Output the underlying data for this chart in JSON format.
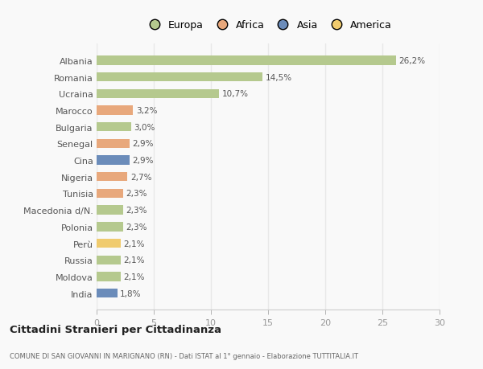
{
  "categories": [
    "Albania",
    "Romania",
    "Ucraina",
    "Marocco",
    "Bulgaria",
    "Senegal",
    "Cina",
    "Nigeria",
    "Tunisia",
    "Macedonia d/N.",
    "Polonia",
    "Perù",
    "Russia",
    "Moldova",
    "India"
  ],
  "values": [
    26.2,
    14.5,
    10.7,
    3.2,
    3.0,
    2.9,
    2.9,
    2.7,
    2.3,
    2.3,
    2.3,
    2.1,
    2.1,
    2.1,
    1.8
  ],
  "labels": [
    "26,2%",
    "14,5%",
    "10,7%",
    "3,2%",
    "3,0%",
    "2,9%",
    "2,9%",
    "2,7%",
    "2,3%",
    "2,3%",
    "2,3%",
    "2,1%",
    "2,1%",
    "2,1%",
    "1,8%"
  ],
  "continents": [
    "Europa",
    "Europa",
    "Europa",
    "Africa",
    "Europa",
    "Africa",
    "Asia",
    "Africa",
    "Africa",
    "Europa",
    "Europa",
    "America",
    "Europa",
    "Europa",
    "Asia"
  ],
  "colors": {
    "Europa": "#b5c98e",
    "Africa": "#e8a87c",
    "Asia": "#6b8cba",
    "America": "#f0cb6e"
  },
  "legend_order": [
    "Europa",
    "Africa",
    "Asia",
    "America"
  ],
  "xlim": [
    0,
    30
  ],
  "xticks": [
    0,
    5,
    10,
    15,
    20,
    25,
    30
  ],
  "title": "Cittadini Stranieri per Cittadinanza",
  "subtitle": "COMUNE DI SAN GIOVANNI IN MARIGNANO (RN) - Dati ISTAT al 1° gennaio - Elaborazione TUTTITALIA.IT",
  "background_color": "#f9f9f9",
  "grid_color": "#e8e8e8",
  "bar_height": 0.55,
  "figsize": [
    6.0,
    4.6
  ],
  "dpi": 100
}
